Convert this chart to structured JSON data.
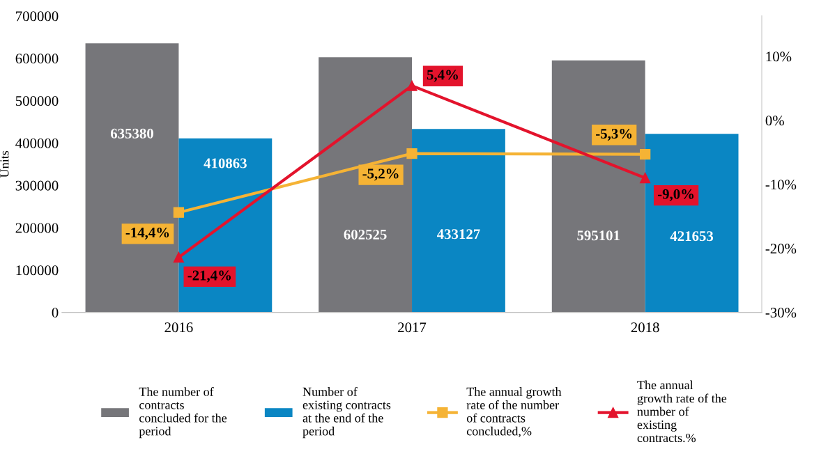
{
  "chart_data": {
    "type": "bar",
    "categories": [
      "2016",
      "2017",
      "2018"
    ],
    "ylabel": "Units",
    "ylim": [
      0,
      700000
    ],
    "yticks": [
      0,
      100000,
      200000,
      300000,
      400000,
      500000,
      600000,
      700000
    ],
    "y2lim": [
      -30,
      16.3
    ],
    "y2ticks": [
      {
        "value": -30,
        "label": "-30%"
      },
      {
        "value": -20,
        "label": "-20%"
      },
      {
        "value": -10,
        "label": "-10%"
      },
      {
        "value": 0,
        "label": "0%"
      },
      {
        "value": 10,
        "label": "10%"
      }
    ],
    "grid": false,
    "legend": "bottom",
    "data_labels": true,
    "series": [
      {
        "name": "The number of\ncontracts\nconcluded for the\nperiod",
        "color": "#76767a",
        "values": [
          635380,
          602525,
          595101
        ]
      },
      {
        "name": "Number of\nexisting contracts\nat the end of the\nperiod",
        "color": "#0a86c3",
        "values": [
          410863,
          433127,
          421653
        ]
      },
      {
        "name": "The annual growth\nrate of the number\nof contracts\nconcluded,%",
        "type": "line",
        "axis": "y2",
        "marker": "square",
        "color": "#f5b335",
        "values": [
          -14.4,
          -5.2,
          -5.3
        ],
        "value_labels": [
          "-14,4%",
          "-5,2%",
          "-5,3%"
        ]
      },
      {
        "name": "The annual\ngrowth rate of the\nnumber of\nexisting\ncontracts.%",
        "type": "line",
        "axis": "y2",
        "marker": "triangle",
        "color": "#e3132c",
        "values": [
          -21.4,
          5.4,
          -9.0
        ],
        "value_labels": [
          "-21,4%",
          "5,4%",
          "-9,0%"
        ]
      }
    ]
  }
}
